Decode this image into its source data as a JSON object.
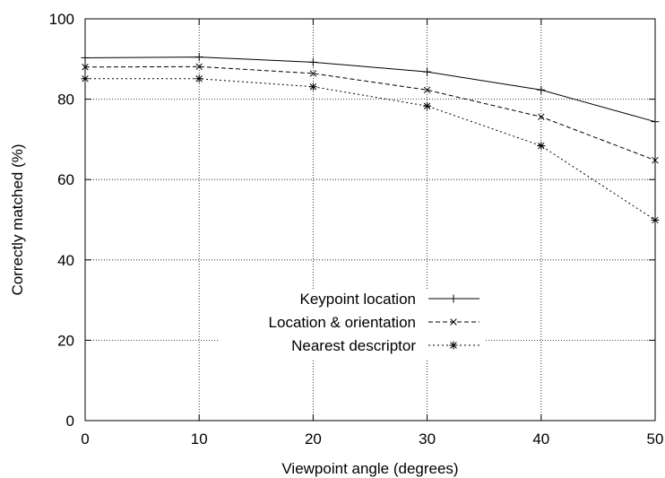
{
  "chart_data": {
    "type": "line",
    "title": "",
    "xlabel": "Viewpoint angle (degrees)",
    "ylabel": "Correctly matched (%)",
    "xlim": [
      0,
      50
    ],
    "ylim": [
      0,
      100
    ],
    "xticks": [
      0,
      10,
      20,
      30,
      40,
      50
    ],
    "yticks": [
      0,
      20,
      40,
      60,
      80,
      100
    ],
    "grid": true,
    "legend_position": "center-bottom",
    "x": [
      0,
      10,
      20,
      30,
      40,
      50
    ],
    "series": [
      {
        "name": "Keypoint location",
        "values": [
          90.3,
          90.5,
          89.2,
          86.8,
          82.3,
          74.4
        ],
        "line_style": "solid",
        "marker": "plus"
      },
      {
        "name": "Location & orientation",
        "values": [
          88.0,
          88.1,
          86.4,
          82.3,
          75.6,
          64.8
        ],
        "line_style": "dashed",
        "marker": "cross"
      },
      {
        "name": "Nearest descriptor",
        "values": [
          85.1,
          85.1,
          83.1,
          78.3,
          68.4,
          49.9
        ],
        "line_style": "dotted",
        "marker": "star"
      }
    ]
  }
}
